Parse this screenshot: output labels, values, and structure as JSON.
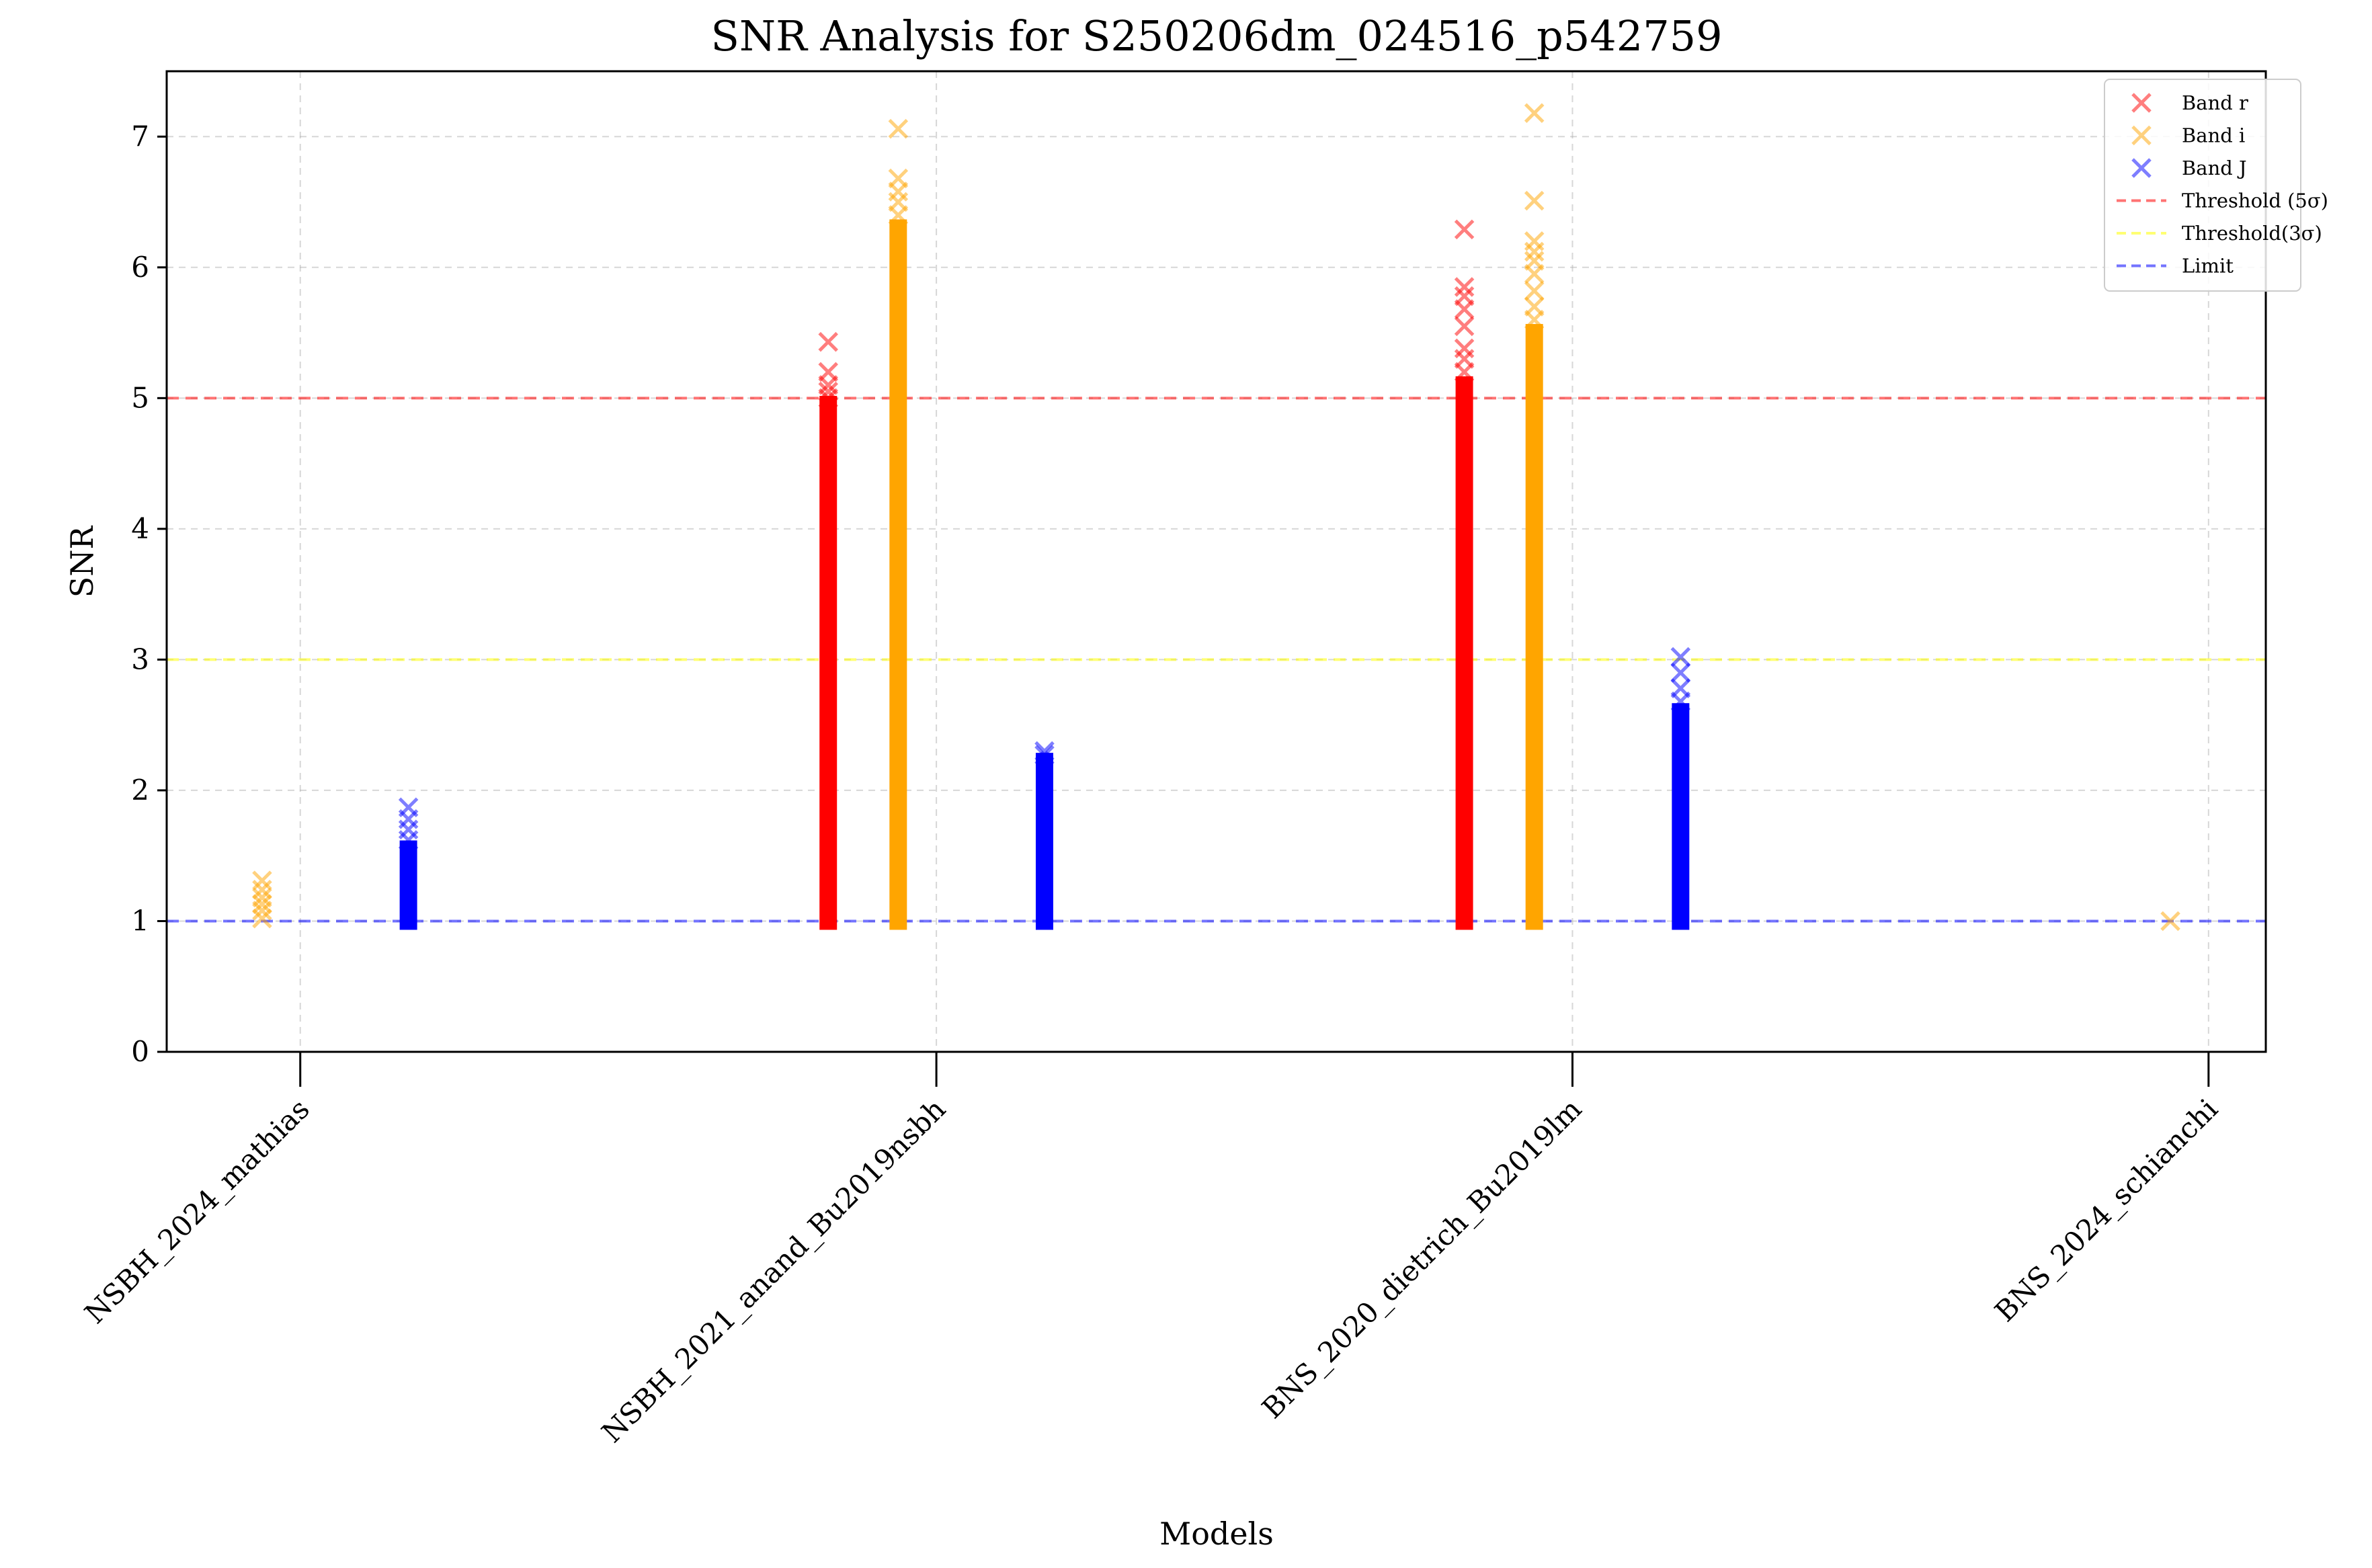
{
  "chart_data": {
    "type": "scatter",
    "title": "SNR Analysis for S250206dm_024516_p542759",
    "xlabel": "Models",
    "ylabel": "SNR",
    "ylim": [
      0,
      7.5
    ],
    "yticks": [
      0,
      1,
      2,
      3,
      4,
      5,
      6,
      7
    ],
    "categories": [
      "NSBH_2024_mathias",
      "NSBH_2021_anand_Bu2019nsbh",
      "BNS_2020_dietrich_Bu2019lm",
      "BNS_2024_schianchi"
    ],
    "grid": true,
    "legend_position": "top-right",
    "series": [
      {
        "name": "Band r",
        "color": "#ff0000",
        "marker": "x",
        "groups": [
          {
            "category": 1,
            "offset": -0.17,
            "dense_min": 1.0,
            "dense_max": 4.95,
            "outliers": [
              5.0,
              5.05,
              5.1,
              5.2,
              5.43
            ]
          },
          {
            "category": 2,
            "offset": -0.17,
            "dense_min": 1.0,
            "dense_max": 5.1,
            "outliers": [
              5.2,
              5.3,
              5.38,
              5.55,
              5.68,
              5.78,
              5.85,
              6.29
            ]
          }
        ]
      },
      {
        "name": "Band i",
        "color": "#ffa500",
        "marker": "x",
        "groups": [
          {
            "category": 0,
            "offset": -0.06,
            "dense_min": null,
            "dense_max": null,
            "outliers": [
              1.02,
              1.08,
              1.13,
              1.18,
              1.24,
              1.31
            ]
          },
          {
            "category": 1,
            "offset": -0.06,
            "dense_min": 1.0,
            "dense_max": 6.3,
            "outliers": [
              6.4,
              6.5,
              6.58,
              6.68,
              7.06
            ]
          },
          {
            "category": 2,
            "offset": -0.06,
            "dense_min": 1.0,
            "dense_max": 5.5,
            "outliers": [
              5.6,
              5.7,
              5.82,
              5.95,
              6.05,
              6.12,
              6.2,
              6.51,
              7.18
            ]
          },
          {
            "category": 3,
            "offset": -0.06,
            "dense_min": null,
            "dense_max": null,
            "outliers": [
              1.0
            ]
          }
        ]
      },
      {
        "name": "Band J",
        "color": "#0000ff",
        "marker": "x",
        "groups": [
          {
            "category": 0,
            "offset": 0.17,
            "dense_min": 1.0,
            "dense_max": 1.55,
            "outliers": [
              1.62,
              1.7,
              1.78,
              1.87
            ]
          },
          {
            "category": 1,
            "offset": 0.17,
            "dense_min": 1.0,
            "dense_max": 2.22,
            "outliers": [
              2.27,
              2.3
            ]
          },
          {
            "category": 2,
            "offset": 0.17,
            "dense_min": 1.0,
            "dense_max": 2.6,
            "outliers": [
              2.68,
              2.78,
              2.9,
              3.02
            ]
          }
        ]
      }
    ],
    "reference_lines": [
      {
        "name": "Threshold (5σ)",
        "y": 5,
        "color": "#ff0000"
      },
      {
        "name": "Threshold(3σ)",
        "y": 3,
        "color": "#ffff00"
      },
      {
        "name": "Limit",
        "y": 1,
        "color": "#0000ff"
      }
    ]
  }
}
